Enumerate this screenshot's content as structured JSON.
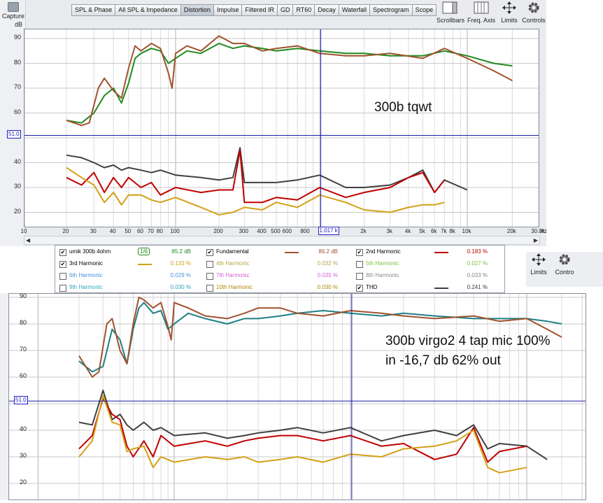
{
  "app": {
    "capture_label": "Capture",
    "tabs": [
      "SPL & Phase",
      "All SPL & Impedance",
      "Distortion",
      "Impulse",
      "Filtered IR",
      "GD",
      "RT60",
      "Decay",
      "Waterfall",
      "Spectrogram",
      "Scope"
    ],
    "active_tab": "Distortion",
    "tools": [
      "Scrollbars",
      "Freq. Axis",
      "Limits",
      "Controls"
    ],
    "bottom_tools": [
      "Limits",
      "Contro"
    ]
  },
  "legend": {
    "items": [
      {
        "label": "umik 300b 4ohm",
        "checked": true,
        "value": "85.2 dB",
        "color": "#1f8a1f",
        "smoothing": "1/6"
      },
      {
        "label": "Fundamental",
        "checked": true,
        "value": "86.2 dB",
        "color": "#a0522d"
      },
      {
        "label": "2nd Harmonic",
        "checked": true,
        "value": "0.183 %",
        "color": "#c00000"
      },
      {
        "label": "3rd Harmonic",
        "checked": true,
        "value": "0.133 %",
        "color": "#d4a017"
      },
      {
        "label": "4th Harmonic",
        "checked": false,
        "value": "0.032 %",
        "color": "#b5a642"
      },
      {
        "label": "5th Harmonic",
        "checked": false,
        "value": "0.027 %",
        "color": "#7fbf3f"
      },
      {
        "label": "6th Harmonic",
        "checked": false,
        "value": "0.029 %",
        "color": "#4a90d9"
      },
      {
        "label": "7th Harmonic",
        "checked": false,
        "value": "0.035 %",
        "color": "#d45fd4"
      },
      {
        "label": "8th Harmonic",
        "checked": false,
        "value": "0.033 %",
        "color": "#888888"
      },
      {
        "label": "9th Harmonic",
        "checked": false,
        "value": "0.030 %",
        "color": "#2aa7b8"
      },
      {
        "label": "10th Harmonic",
        "checked": false,
        "value": "0.030 %",
        "color": "#b08a00"
      },
      {
        "label": "THD",
        "checked": true,
        "value": "0.241 %",
        "color": "#404040"
      }
    ]
  },
  "chart_data": [
    {
      "type": "line",
      "title": "300b tqwt",
      "ylabel": "dB",
      "xlabel": "Hz",
      "x_scale": "log",
      "xlim": [
        10,
        30000
      ],
      "ylim": [
        15,
        93
      ],
      "y_ticks": [
        "20",
        "30",
        "40",
        "50",
        "60",
        "70",
        "80",
        "90"
      ],
      "x_tick_labels": [
        "10",
        "20",
        "30",
        "40",
        "50",
        "60",
        "70",
        "80",
        "100",
        "200",
        "300",
        "400",
        "500",
        "600",
        "800",
        "2k",
        "3k",
        "4k",
        "5k",
        "6k",
        "7k",
        "8k",
        "10k",
        "20k",
        "30.0k"
      ],
      "cursor": {
        "freq_label": "1.017 k",
        "level_label": "51.0",
        "freq": 1017,
        "level": 51
      },
      "series": [
        {
          "key": "green",
          "color": "#1f8a1f",
          "x": [
            20,
            25,
            30,
            35,
            40,
            45,
            50,
            55,
            60,
            70,
            80,
            90,
            100,
            120,
            150,
            200,
            250,
            300,
            400,
            500,
            700,
            1000,
            1500,
            2000,
            3000,
            5000,
            7000,
            10000,
            15000,
            20000
          ],
          "y": [
            57,
            56,
            60,
            67,
            70,
            64,
            72,
            82,
            84,
            86,
            85,
            80,
            82,
            85,
            84,
            88,
            86,
            87,
            86,
            85,
            86,
            85,
            84,
            84,
            83,
            83,
            85,
            83,
            80,
            79
          ]
        },
        {
          "key": "fundamental",
          "color": "#a0522d",
          "x": [
            20,
            25,
            28,
            32,
            35,
            40,
            45,
            50,
            55,
            60,
            70,
            80,
            90,
            95,
            100,
            120,
            150,
            200,
            250,
            300,
            400,
            500,
            700,
            1000,
            1500,
            2000,
            3000,
            5000,
            7000,
            10000,
            15000,
            20000
          ],
          "y": [
            57,
            55,
            56,
            70,
            74,
            69,
            66,
            78,
            87,
            85,
            88,
            86,
            76,
            70,
            84,
            87,
            85,
            91,
            88,
            88,
            85,
            86,
            87,
            84,
            83,
            83,
            84,
            82,
            86,
            82,
            77,
            73
          ]
        },
        {
          "key": "thd",
          "color": "#404040",
          "x": [
            20,
            25,
            30,
            35,
            40,
            45,
            50,
            60,
            70,
            80,
            100,
            150,
            200,
            250,
            280,
            300,
            400,
            500,
            700,
            1000,
            1500,
            2000,
            3000,
            4000,
            5000,
            6000,
            7000,
            10000
          ],
          "y": [
            43,
            42,
            40,
            38,
            39,
            37,
            38,
            37,
            36,
            37,
            35,
            34,
            33,
            34,
            46,
            32,
            32,
            32,
            33,
            35,
            30,
            30,
            31,
            34,
            37,
            28,
            33,
            29
          ]
        },
        {
          "key": "h2",
          "color": "#c00000",
          "x": [
            20,
            25,
            30,
            35,
            40,
            45,
            50,
            60,
            70,
            80,
            100,
            150,
            200,
            250,
            280,
            300,
            400,
            500,
            700,
            1000,
            1500,
            2000,
            3000,
            4000,
            5000,
            6000,
            7000
          ],
          "y": [
            34,
            31,
            36,
            28,
            34,
            30,
            34,
            30,
            32,
            27,
            30,
            28,
            29,
            29,
            45,
            24,
            24,
            26,
            25,
            30,
            26,
            28,
            30,
            34,
            36,
            28,
            33
          ]
        },
        {
          "key": "h3",
          "color": "#d4a017",
          "x": [
            20,
            25,
            30,
            35,
            40,
            45,
            50,
            60,
            70,
            80,
            100,
            150,
            200,
            250,
            300,
            400,
            500,
            700,
            1000,
            1500,
            2000,
            3000,
            4000,
            5000,
            6000,
            7000
          ],
          "y": [
            38,
            34,
            31,
            24,
            28,
            23,
            27,
            27,
            25,
            24,
            26,
            22,
            19,
            20,
            22,
            21,
            24,
            22,
            27,
            24,
            21,
            20,
            22,
            23,
            23,
            24
          ]
        }
      ]
    },
    {
      "type": "line",
      "title": "300b virgo2 4 tap mic 100%",
      "subtitle": "in -16,7 db 62% out",
      "x_scale": "log",
      "xlim": [
        10,
        30000
      ],
      "ylim": [
        15,
        93
      ],
      "y_ticks": [
        "20",
        "30",
        "40",
        "50",
        "60",
        "70",
        "80",
        "90"
      ],
      "cursor": {
        "level_label": "51.0",
        "freq": 1017,
        "level": 51
      },
      "series": [
        {
          "key": "teal",
          "color": "#1e7f86",
          "x": [
            20,
            25,
            30,
            35,
            40,
            45,
            50,
            55,
            60,
            70,
            80,
            90,
            100,
            120,
            150,
            200,
            250,
            300,
            400,
            500,
            700,
            1000,
            1500,
            2000,
            3000,
            5000,
            7000,
            10000,
            15000,
            20000
          ],
          "y": [
            66,
            62,
            64,
            78,
            74,
            65,
            78,
            86,
            88,
            84,
            85,
            78,
            80,
            84,
            82,
            80,
            82,
            82,
            83,
            84,
            85,
            84,
            83,
            84,
            83,
            82,
            82,
            82,
            81,
            80
          ]
        },
        {
          "key": "fundamental",
          "color": "#a0522d",
          "x": [
            20,
            25,
            28,
            32,
            35,
            40,
            45,
            50,
            55,
            60,
            70,
            80,
            90,
            95,
            100,
            120,
            150,
            200,
            250,
            300,
            400,
            500,
            700,
            1000,
            1500,
            2000,
            3000,
            5000,
            7000,
            10000,
            15000,
            20000
          ],
          "y": [
            68,
            60,
            62,
            80,
            82,
            70,
            65,
            80,
            90,
            89,
            86,
            88,
            79,
            74,
            88,
            86,
            83,
            82,
            84,
            86,
            86,
            84,
            83,
            85,
            84,
            83,
            82,
            83,
            81,
            82,
            78,
            75
          ]
        },
        {
          "key": "thd",
          "color": "#404040",
          "x": [
            20,
            25,
            30,
            35,
            40,
            45,
            50,
            60,
            70,
            80,
            100,
            150,
            200,
            250,
            300,
            400,
            500,
            700,
            1000,
            1500,
            2000,
            3000,
            4000,
            5000,
            6000,
            7000,
            10000,
            15000
          ],
          "y": [
            43,
            42,
            55,
            44,
            46,
            42,
            40,
            43,
            40,
            41,
            38,
            39,
            37,
            38,
            39,
            40,
            41,
            39,
            41,
            36,
            38,
            40,
            38,
            42,
            33,
            35,
            34,
            29
          ]
        },
        {
          "key": "h2",
          "color": "#c00000",
          "x": [
            20,
            25,
            30,
            35,
            40,
            45,
            50,
            60,
            70,
            80,
            100,
            150,
            200,
            250,
            300,
            400,
            500,
            700,
            1000,
            1500,
            2000,
            3000,
            4000,
            5000,
            6000,
            7000,
            10000
          ],
          "y": [
            33,
            38,
            52,
            46,
            44,
            34,
            30,
            36,
            30,
            38,
            34,
            36,
            34,
            36,
            37,
            38,
            38,
            36,
            38,
            34,
            35,
            29,
            31,
            41,
            28,
            32,
            34
          ]
        },
        {
          "key": "h3",
          "color": "#d4a017",
          "x": [
            20,
            25,
            30,
            35,
            40,
            45,
            50,
            60,
            70,
            80,
            100,
            150,
            200,
            250,
            300,
            400,
            500,
            700,
            1000,
            1500,
            2000,
            3000,
            4000,
            5000,
            6000,
            7000,
            10000
          ],
          "y": [
            30,
            36,
            53,
            43,
            42,
            32,
            33,
            34,
            26,
            30,
            28,
            30,
            29,
            30,
            28,
            29,
            30,
            28,
            31,
            30,
            33,
            34,
            36,
            40,
            26,
            24,
            26
          ]
        }
      ]
    }
  ]
}
